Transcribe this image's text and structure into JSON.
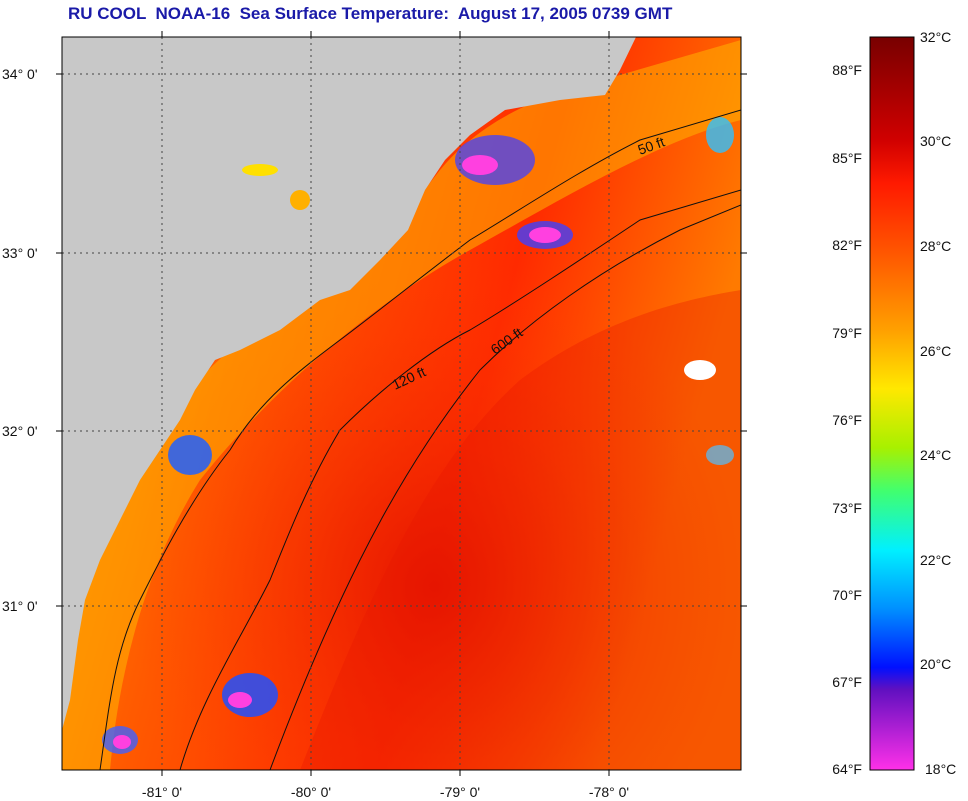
{
  "title": "RU COOL  NOAA-16  Sea Surface Temperature:  August 17, 2005 0739 GMT",
  "lat_labels": [
    "34° 0'",
    "33° 0'",
    "32° 0'",
    "31° 0'"
  ],
  "lon_labels": [
    "-81° 0'",
    "-80° 0'",
    "-79° 0'",
    "-78° 0'"
  ],
  "contour_labels": [
    "50 ft",
    "120 ft",
    "600 ft"
  ],
  "colorbar": {
    "fahrenheit": [
      "88°F",
      "85°F",
      "82°F",
      "79°F",
      "76°F",
      "73°F",
      "70°F",
      "67°F",
      "64°F"
    ],
    "celsius": [
      "32°C",
      "30°C",
      "28°C",
      "26°C",
      "24°C",
      "22°C",
      "20°C",
      "18°C"
    ],
    "colors": [
      "#7a0000",
      "#c80000",
      "#ff1e00",
      "#ff6a00",
      "#ffa000",
      "#ffe000",
      "#c8f000",
      "#40ff60",
      "#00ffe0",
      "#00a0ff",
      "#0040ff",
      "#0000e0",
      "#8000c0",
      "#ff30e0"
    ]
  },
  "land_color": "#c8c8c8"
}
